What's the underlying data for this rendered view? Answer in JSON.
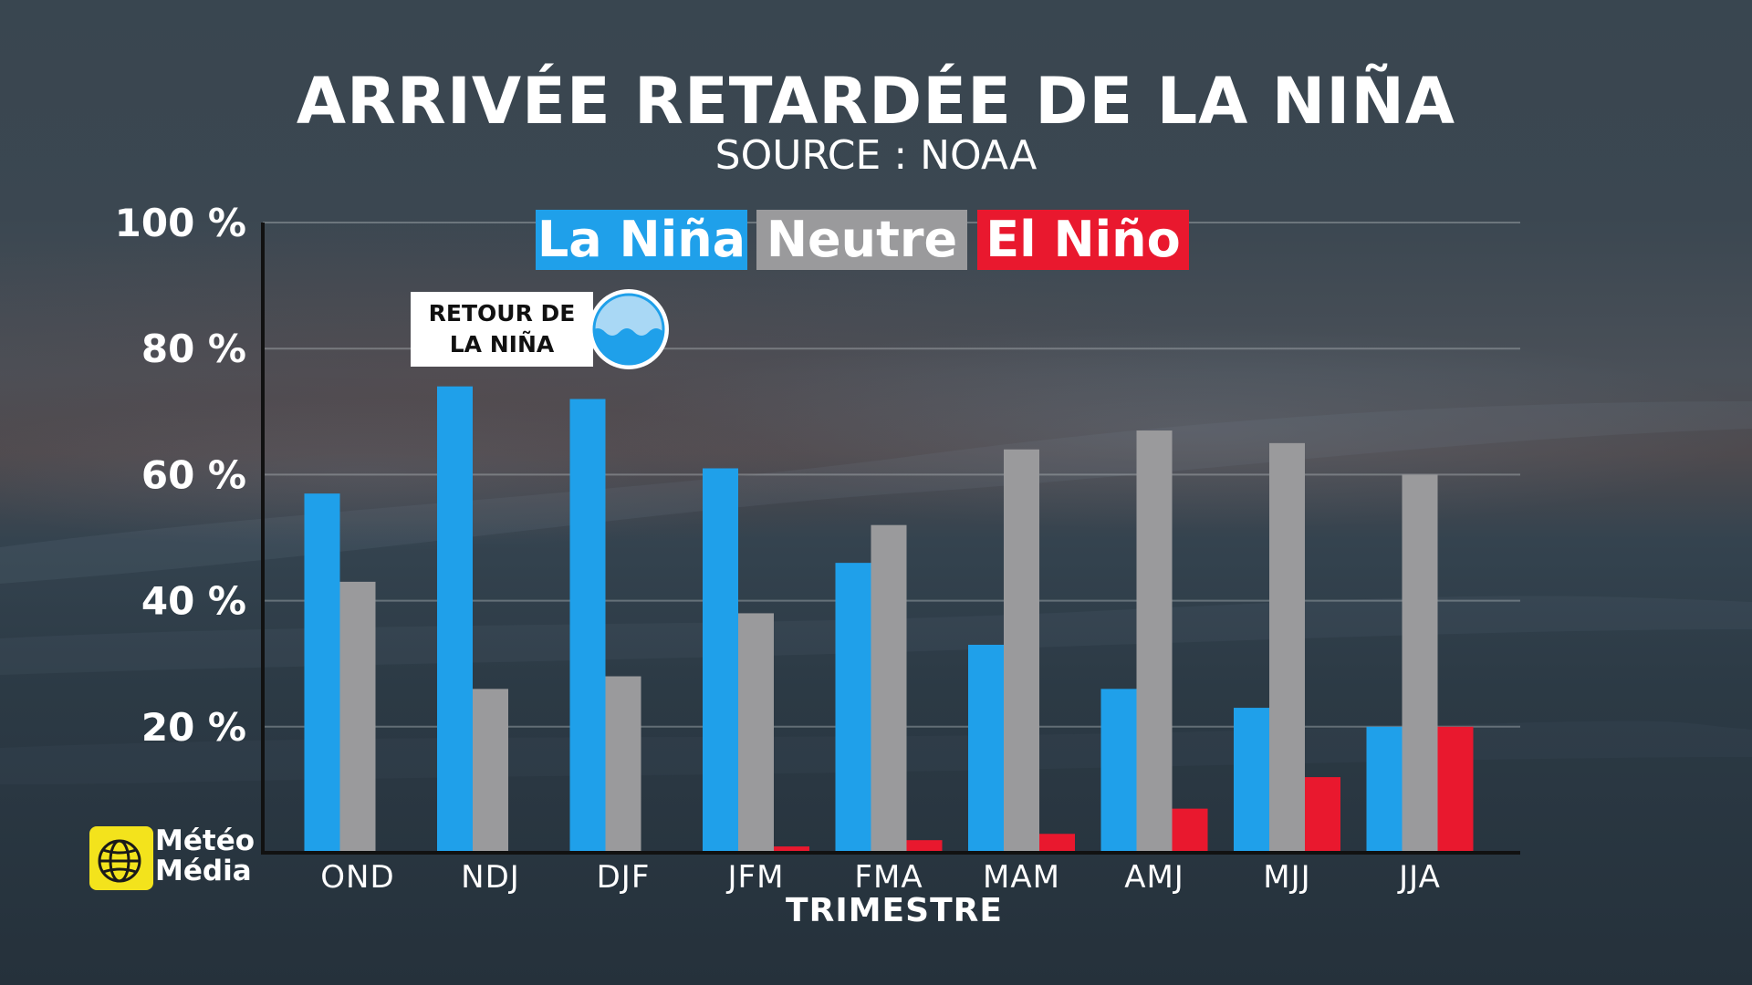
{
  "header": {
    "title": "ARRIVÉE RETARDÉE DE LA NIÑA",
    "subtitle": "SOURCE : NOAA"
  },
  "legend": {
    "la_nina": "La Niña",
    "neutre": "Neutre",
    "el_nino": "El Niño"
  },
  "callout": {
    "line1": "RETOUR DE",
    "line2": "LA NIÑA",
    "icon": "wave-circle-icon"
  },
  "logo": {
    "line1": "Météo",
    "line2": "Média",
    "icon": "globe-logo-icon"
  },
  "colors": {
    "la_nina": "#1fa0ea",
    "neutre": "#9a9a9c",
    "el_nino": "#e9182e"
  },
  "chart_data": {
    "type": "bar",
    "title": "ARRIVÉE RETARDÉE DE LA NIÑA",
    "subtitle": "SOURCE : NOAA",
    "xlabel": "TRIMESTRE",
    "ylabel": "",
    "ylim": [
      0,
      100
    ],
    "yticks": [
      20,
      40,
      60,
      80,
      100
    ],
    "ytick_labels": [
      "20 %",
      "40 %",
      "60 %",
      "80 %",
      "100 %"
    ],
    "grid": true,
    "legend_position": "top-center",
    "categories": [
      "OND",
      "NDJ",
      "DJF",
      "JFM",
      "FMA",
      "MAM",
      "AMJ",
      "MJJ",
      "JJA"
    ],
    "series": [
      {
        "name": "La Niña",
        "color": "#1fa0ea",
        "values": [
          57,
          74,
          72,
          61,
          46,
          33,
          26,
          23,
          20
        ]
      },
      {
        "name": "Neutre",
        "color": "#9a9a9c",
        "values": [
          43,
          26,
          28,
          38,
          52,
          64,
          67,
          65,
          60
        ]
      },
      {
        "name": "El Niño",
        "color": "#e9182e",
        "values": [
          0,
          0,
          0,
          1,
          2,
          3,
          7,
          12,
          20
        ]
      }
    ]
  }
}
